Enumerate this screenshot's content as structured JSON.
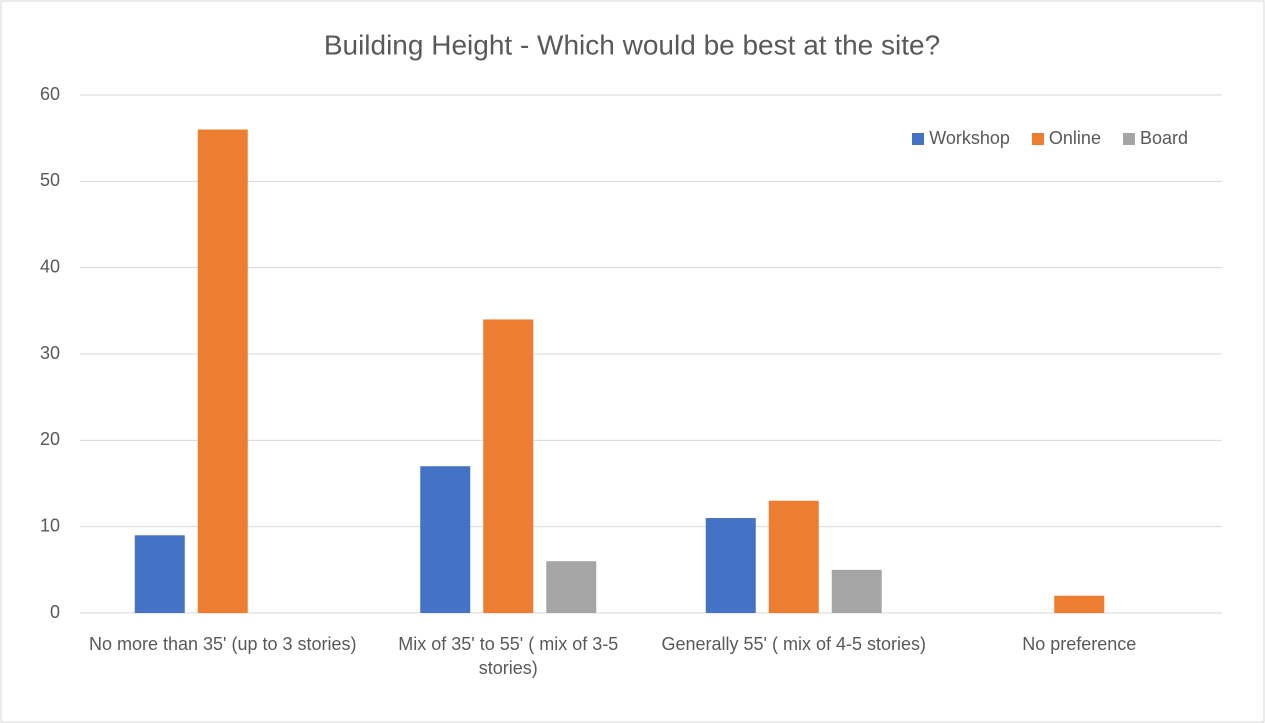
{
  "chart_data": {
    "type": "bar",
    "title": "Building Height - Which would be best at the site?",
    "categories": [
      "No more than 35' (up to 3 stories)",
      "Mix of 35' to 55' ( mix of 3-5 stories)",
      "Generally 55' ( mix of 4-5 stories)",
      "No preference"
    ],
    "series": [
      {
        "name": "Workshop",
        "color": "#4472c4",
        "values": [
          9,
          17,
          11,
          0
        ]
      },
      {
        "name": "Online",
        "color": "#ed7d31",
        "values": [
          56,
          34,
          13,
          2
        ]
      },
      {
        "name": "Board",
        "color": "#a5a5a5",
        "values": [
          0,
          6,
          5,
          0
        ]
      }
    ],
    "ylim": [
      0,
      60
    ],
    "yticks": [
      0,
      10,
      20,
      30,
      40,
      50,
      60
    ],
    "grid": true,
    "legend": "top-right"
  }
}
